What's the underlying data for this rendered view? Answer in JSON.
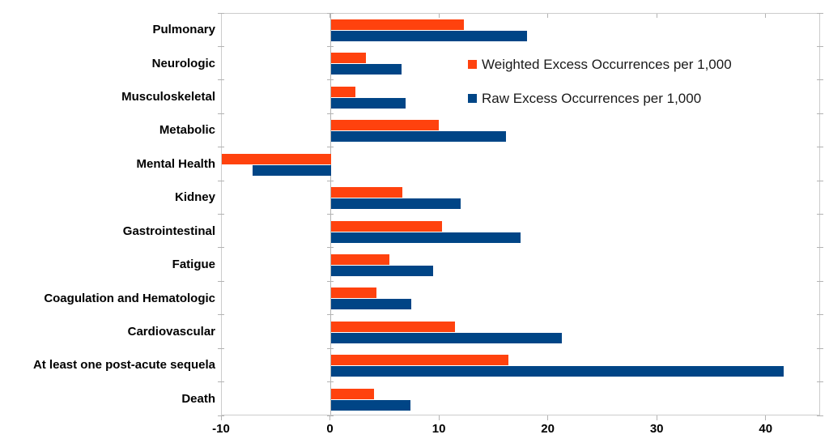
{
  "chart_data": {
    "type": "bar",
    "orientation": "horizontal",
    "title": "",
    "xlabel": "",
    "ylabel": "",
    "categories": [
      "Pulmonary",
      "Neurologic",
      "Musculoskeletal",
      "Metabolic",
      "Mental Health",
      "Kidney",
      "Gastrointestinal",
      "Fatigue",
      "Coagulation and Hematologic",
      "Cardiovascular",
      "At least one post-acute sequela",
      "Death"
    ],
    "series": [
      {
        "name": "Weighted Excess Occurrences per 1,000",
        "color": "#FF420E",
        "values": [
          12.2,
          3.2,
          2.3,
          9.9,
          -10.0,
          6.6,
          10.2,
          5.4,
          4.2,
          11.4,
          16.3,
          4.0
        ]
      },
      {
        "name": "Raw Excess Occurrences per 1,000",
        "color": "#004586",
        "values": [
          18.0,
          6.5,
          6.9,
          16.1,
          -7.2,
          11.9,
          17.4,
          9.4,
          7.4,
          21.2,
          41.6,
          7.3
        ]
      }
    ],
    "xlim": [
      -10,
      45
    ],
    "xticks": [
      -10,
      0,
      10,
      20,
      30,
      40
    ],
    "xtick_labels": [
      "-10",
      "0",
      "10",
      "20",
      "30",
      "40"
    ],
    "grid": false,
    "legend_position": "inside-top-right",
    "colors": {
      "background": "#ffffff",
      "plot_border": "#cccccc",
      "axis_and_ticks": "#b3b3b3",
      "label_text": "#000000",
      "legend_text": "#1a1a1a"
    }
  }
}
